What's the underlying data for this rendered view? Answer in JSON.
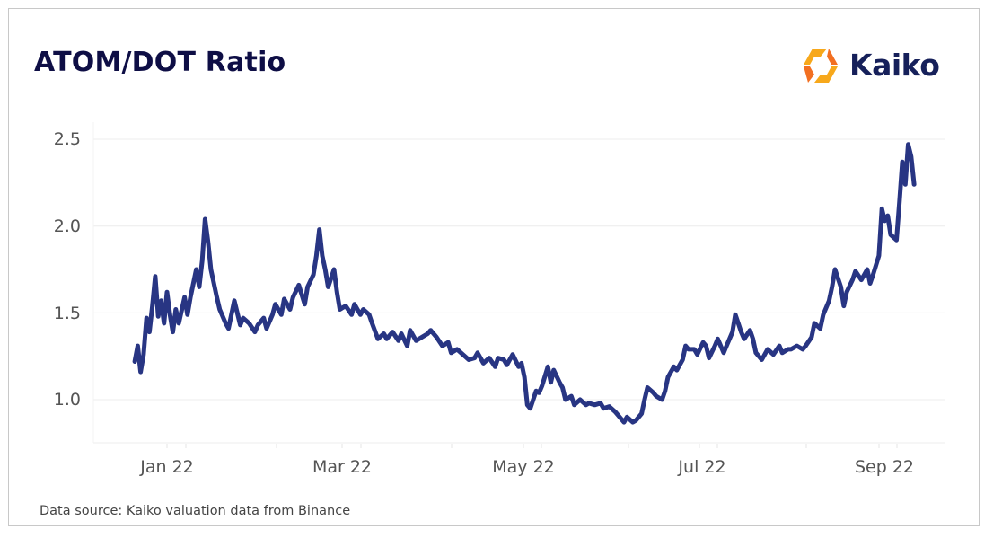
{
  "header": {
    "title": "ATOM/DOT Ratio",
    "logo_text": "Kaiko",
    "logo_colors": [
      "#f7a81b",
      "#f26f21"
    ]
  },
  "footer": {
    "source": "Data source: Kaiko valuation data from Binance"
  },
  "colors": {
    "line": "#283583",
    "grid": "#ececec",
    "title": "#0e0e45",
    "axis_text": "#555555"
  },
  "axes": {
    "y_ticks": [
      "2.5",
      "2.0",
      "1.5",
      "1.0"
    ],
    "x_ticks": [
      "Jan 22",
      "Mar 22",
      "May 22",
      "Jul 22",
      "Sep 22"
    ]
  },
  "chart_data": {
    "type": "line",
    "title": "ATOM/DOT Ratio",
    "xlabel": "",
    "ylabel": "",
    "ylim": [
      0.75,
      2.6
    ],
    "yticks": [
      1.0,
      1.5,
      2.0,
      2.5
    ],
    "xticks": [
      "Jan 22",
      "Mar 22",
      "May 22",
      "Jul 22",
      "Sep 22"
    ],
    "grid": true,
    "legend": null,
    "annotations": [
      "Data source: Kaiko valuation data from Binance"
    ],
    "series": [
      {
        "name": "ATOM/DOT",
        "color": "#283583",
        "x": [
          "2021-12-21",
          "2021-12-22",
          "2021-12-23",
          "2021-12-24",
          "2021-12-25",
          "2021-12-26",
          "2021-12-27",
          "2021-12-28",
          "2021-12-29",
          "2021-12-30",
          "2021-12-31",
          "2022-01-01",
          "2022-01-02",
          "2022-01-03",
          "2022-01-04",
          "2022-01-05",
          "2022-01-07",
          "2022-01-08",
          "2022-01-09",
          "2022-01-11",
          "2022-01-12",
          "2022-01-13",
          "2022-01-14",
          "2022-01-15",
          "2022-01-16",
          "2022-01-18",
          "2022-01-19",
          "2022-01-21",
          "2022-01-22",
          "2022-01-24",
          "2022-01-26",
          "2022-01-27",
          "2022-01-29",
          "2022-01-31",
          "2022-02-01",
          "2022-02-03",
          "2022-02-04",
          "2022-02-06",
          "2022-02-07",
          "2022-02-09",
          "2022-02-10",
          "2022-02-12",
          "2022-02-13",
          "2022-02-15",
          "2022-02-17",
          "2022-02-18",
          "2022-02-20",
          "2022-02-21",
          "2022-02-22",
          "2022-02-23",
          "2022-02-24",
          "2022-02-25",
          "2022-02-27",
          "2022-02-28",
          "2022-03-01",
          "2022-03-03",
          "2022-03-05",
          "2022-03-06",
          "2022-03-08",
          "2022-03-09",
          "2022-03-11",
          "2022-03-12",
          "2022-03-14",
          "2022-03-16",
          "2022-03-17",
          "2022-03-19",
          "2022-03-21",
          "2022-03-22",
          "2022-03-24",
          "2022-03-25",
          "2022-03-27",
          "2022-03-29",
          "2022-03-31",
          "2022-04-01",
          "2022-04-03",
          "2022-04-05",
          "2022-04-07",
          "2022-04-08",
          "2022-04-10",
          "2022-04-12",
          "2022-04-14",
          "2022-04-16",
          "2022-04-17",
          "2022-04-19",
          "2022-04-21",
          "2022-04-23",
          "2022-04-24",
          "2022-04-26",
          "2022-04-27",
          "2022-04-29",
          "2022-05-01",
          "2022-05-02",
          "2022-05-03",
          "2022-05-04",
          "2022-05-05",
          "2022-05-07",
          "2022-05-08",
          "2022-05-09",
          "2022-05-11",
          "2022-05-12",
          "2022-05-13",
          "2022-05-15",
          "2022-05-16",
          "2022-05-17",
          "2022-05-19",
          "2022-05-20",
          "2022-05-22",
          "2022-05-24",
          "2022-05-25",
          "2022-05-27",
          "2022-05-29",
          "2022-05-30",
          "2022-06-01",
          "2022-06-03",
          "2022-06-04",
          "2022-06-06",
          "2022-06-07",
          "2022-06-09",
          "2022-06-10",
          "2022-06-12",
          "2022-06-13",
          "2022-06-14",
          "2022-06-16",
          "2022-06-17",
          "2022-06-19",
          "2022-06-20",
          "2022-06-21",
          "2022-06-23",
          "2022-06-24",
          "2022-06-26",
          "2022-06-27",
          "2022-06-28",
          "2022-06-30",
          "2022-07-01",
          "2022-07-03",
          "2022-07-04",
          "2022-07-05",
          "2022-07-07",
          "2022-07-08",
          "2022-07-10",
          "2022-07-11",
          "2022-07-13",
          "2022-07-14",
          "2022-07-15",
          "2022-07-16",
          "2022-07-17",
          "2022-07-19",
          "2022-07-20",
          "2022-07-21",
          "2022-07-23",
          "2022-07-24",
          "2022-07-25",
          "2022-07-27",
          "2022-07-29",
          "2022-07-30",
          "2022-08-01",
          "2022-08-02",
          "2022-08-04",
          "2022-08-06",
          "2022-08-07",
          "2022-08-09",
          "2022-08-10",
          "2022-08-12",
          "2022-08-13",
          "2022-08-15",
          "2022-08-16",
          "2022-08-17",
          "2022-08-19",
          "2022-08-20",
          "2022-08-21",
          "2022-08-23",
          "2022-08-24",
          "2022-08-26",
          "2022-08-27",
          "2022-08-28",
          "2022-08-29",
          "2022-08-30",
          "2022-09-01",
          "2022-09-02",
          "2022-09-03",
          "2022-09-04",
          "2022-09-05",
          "2022-09-07",
          "2022-09-08",
          "2022-09-09",
          "2022-09-10",
          "2022-09-11",
          "2022-09-12",
          "2022-09-13"
        ],
        "values": [
          1.22,
          1.31,
          1.16,
          1.26,
          1.47,
          1.39,
          1.54,
          1.71,
          1.48,
          1.57,
          1.44,
          1.62,
          1.49,
          1.39,
          1.52,
          1.44,
          1.59,
          1.49,
          1.59,
          1.75,
          1.65,
          1.8,
          2.04,
          1.91,
          1.75,
          1.59,
          1.52,
          1.44,
          1.41,
          1.57,
          1.43,
          1.47,
          1.44,
          1.39,
          1.43,
          1.47,
          1.41,
          1.49,
          1.55,
          1.49,
          1.58,
          1.52,
          1.59,
          1.66,
          1.55,
          1.65,
          1.72,
          1.83,
          1.98,
          1.83,
          1.75,
          1.65,
          1.75,
          1.62,
          1.52,
          1.54,
          1.49,
          1.55,
          1.49,
          1.52,
          1.49,
          1.44,
          1.35,
          1.38,
          1.35,
          1.39,
          1.34,
          1.38,
          1.31,
          1.4,
          1.34,
          1.36,
          1.38,
          1.4,
          1.36,
          1.31,
          1.33,
          1.27,
          1.29,
          1.26,
          1.23,
          1.24,
          1.27,
          1.21,
          1.24,
          1.19,
          1.24,
          1.23,
          1.2,
          1.26,
          1.19,
          1.21,
          1.13,
          0.97,
          0.95,
          1.05,
          1.04,
          1.08,
          1.19,
          1.1,
          1.17,
          1.1,
          1.07,
          1.0,
          1.02,
          0.97,
          1.0,
          0.97,
          0.98,
          0.97,
          0.98,
          0.95,
          0.96,
          0.93,
          0.91,
          0.87,
          0.9,
          0.87,
          0.88,
          0.92,
          1.0,
          1.07,
          1.04,
          1.02,
          1.0,
          1.05,
          1.13,
          1.19,
          1.17,
          1.23,
          1.31,
          1.29,
          1.29,
          1.26,
          1.33,
          1.31,
          1.24,
          1.31,
          1.35,
          1.27,
          1.31,
          1.39,
          1.49,
          1.44,
          1.39,
          1.35,
          1.4,
          1.35,
          1.27,
          1.23,
          1.26,
          1.29,
          1.26,
          1.31,
          1.27,
          1.29,
          1.29,
          1.31,
          1.29,
          1.31,
          1.36,
          1.44,
          1.41,
          1.49,
          1.57,
          1.65,
          1.75,
          1.65,
          1.54,
          1.62,
          1.69,
          1.74,
          1.69,
          1.72,
          1.75,
          1.67,
          1.72,
          1.83,
          2.1,
          2.03,
          2.06,
          1.95,
          1.92,
          2.14,
          2.37,
          2.24,
          2.47,
          2.4,
          2.24
        ]
      }
    ]
  }
}
